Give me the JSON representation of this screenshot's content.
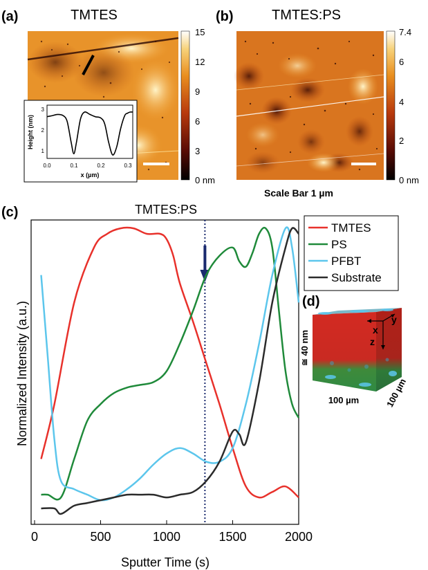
{
  "panels": {
    "a": {
      "label": "(a)",
      "title": "TMTES",
      "colorbar": {
        "ticks": [
          "15",
          "12",
          "9",
          "6",
          "3",
          "0 nm"
        ]
      },
      "inset": {
        "ylabel": "Height (nm)",
        "xlabel": "x (µm)",
        "yticks": [
          "3",
          "2",
          "1"
        ],
        "xticks": [
          "0.0",
          "0.1",
          "0.2",
          "0.3"
        ]
      }
    },
    "b": {
      "label": "(b)",
      "title": "TMTES:PS",
      "colorbar": {
        "ticks": [
          "7.4",
          "6",
          "4",
          "2",
          "0 nm"
        ]
      },
      "scale_bar_label": "Scale Bar 1 µm"
    },
    "c": {
      "label": "(c)",
      "title": "TMTES:PS"
    },
    "d": {
      "label": "(d)",
      "axis_x": "x",
      "axis_y": "y",
      "axis_z": "z",
      "depth": "≅ 40 nm",
      "width1": "100 µm",
      "width2": "100 µm"
    }
  },
  "colors": {
    "TMTES": "#e8312b",
    "PS": "#1f8a3a",
    "PFBT": "#5cc6ec",
    "Substrate": "#2b2b2b",
    "marker": "#1a2a6e"
  },
  "chart_data": [
    {
      "type": "line",
      "title": "TMTES:PS",
      "xlabel": "Sputter Time (s)",
      "ylabel": "Normalized Intensity (a.u.)",
      "xlim": [
        0,
        2000
      ],
      "ylim": [
        0,
        1
      ],
      "xticks": [
        "0",
        "500",
        "1000",
        "1500",
        "2000"
      ],
      "marker_x": 1290,
      "legend_position": "top-right",
      "series": [
        {
          "name": "TMTES",
          "x": [
            50,
            150,
            300,
            450,
            550,
            650,
            750,
            850,
            950,
            1000,
            1050,
            1100,
            1200,
            1300,
            1400,
            1500,
            1600,
            1700,
            1800,
            1900,
            2000
          ],
          "y": [
            0.18,
            0.38,
            0.75,
            0.95,
            1.0,
            1.02,
            1.02,
            1.0,
            1.0,
            0.98,
            0.92,
            0.82,
            0.68,
            0.53,
            0.38,
            0.22,
            0.08,
            0.04,
            0.06,
            0.08,
            0.04
          ]
        },
        {
          "name": "PS",
          "x": [
            50,
            100,
            200,
            300,
            400,
            500,
            600,
            700,
            800,
            900,
            1000,
            1100,
            1200,
            1300,
            1400,
            1500,
            1550,
            1600,
            1650,
            1700,
            1750,
            1800,
            1850,
            1900,
            1950,
            2000
          ],
          "y": [
            0.05,
            0.05,
            0.04,
            0.18,
            0.32,
            0.38,
            0.42,
            0.44,
            0.45,
            0.46,
            0.5,
            0.6,
            0.72,
            0.85,
            0.92,
            0.95,
            0.9,
            0.88,
            0.93,
            1.0,
            1.02,
            0.95,
            0.72,
            0.5,
            0.38,
            0.33
          ]
        },
        {
          "name": "PFBT",
          "x": [
            50,
            100,
            150,
            200,
            300,
            400,
            500,
            600,
            700,
            800,
            900,
            1000,
            1100,
            1200,
            1300,
            1400,
            1500,
            1600,
            1700,
            1800,
            1900,
            1950,
            2000
          ],
          "y": [
            0.85,
            0.55,
            0.25,
            0.1,
            0.07,
            0.05,
            0.03,
            0.04,
            0.07,
            0.11,
            0.16,
            0.2,
            0.22,
            0.2,
            0.17,
            0.17,
            0.22,
            0.38,
            0.6,
            0.85,
            1.02,
            0.95,
            0.75
          ]
        },
        {
          "name": "Substrate",
          "x": [
            50,
            150,
            200,
            300,
            400,
            500,
            600,
            700,
            800,
            900,
            1000,
            1100,
            1200,
            1300,
            1400,
            1500,
            1550,
            1600,
            1700,
            1800,
            1900,
            1950,
            2000
          ],
          "y": [
            0.0,
            0.0,
            -0.02,
            0.01,
            0.02,
            0.03,
            0.04,
            0.05,
            0.05,
            0.05,
            0.04,
            0.05,
            0.06,
            0.1,
            0.17,
            0.28,
            0.27,
            0.24,
            0.46,
            0.75,
            0.95,
            1.02,
            1.0
          ]
        }
      ]
    },
    {
      "type": "line",
      "title": "",
      "xlabel": "x (µm)",
      "ylabel": "Height (nm)",
      "xlim": [
        0,
        0.32
      ],
      "ylim": [
        0.7,
        3.0
      ],
      "series": [
        {
          "x": [
            0,
            0.02,
            0.04,
            0.06,
            0.075,
            0.09,
            0.1,
            0.11,
            0.125,
            0.14,
            0.16,
            0.18,
            0.2,
            0.215,
            0.23,
            0.245,
            0.26,
            0.275,
            0.29,
            0.3,
            0.31,
            0.32
          ],
          "y": [
            2.5,
            2.55,
            2.6,
            2.55,
            2.3,
            1.4,
            0.9,
            1.4,
            2.4,
            2.7,
            2.6,
            2.5,
            2.45,
            2.2,
            1.4,
            0.85,
            1.2,
            2.0,
            2.55,
            2.65,
            2.7,
            2.7
          ]
        }
      ]
    }
  ]
}
